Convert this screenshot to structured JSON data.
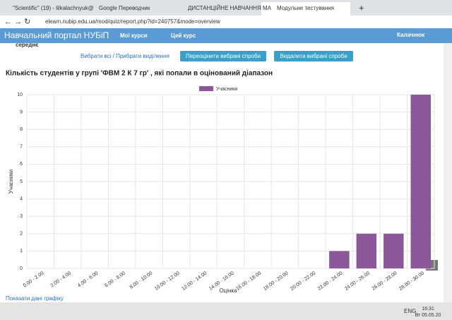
{
  "browser": {
    "tabs": [
      "\"Scientific\" (19) - lilkalachnyuk@",
      "Google Переводчик",
      "ДИСТАНЦІЙНЕ НАВЧАННЯ МА",
      "Модульне тестування"
    ],
    "url": "elearn.nubip.edu.ua/mod/quiz/report.php?id=240757&mode=overview"
  },
  "nav": {
    "title": "Навчальний портал НУБіП",
    "my_courses": "Мої курси",
    "this_course": "Цей курс",
    "user": "Калачнюк"
  },
  "page": {
    "row_label": "середнє",
    "select_links": "Вибрати всі / Прибрати виділення",
    "buttons": [
      "Переоцінити вибрані спроби",
      "Видалити вибрані спроби"
    ],
    "heading": "Кількість студентів у групі 'ФВМ 2 К 7 гр' , які попали в оцінований діапазон",
    "show_data": "Показати дані графіку"
  },
  "chart_data": {
    "type": "bar",
    "x_label": "Оцінка",
    "y_label": "Учасники",
    "categories": [
      "0.00 - 2.00",
      "2.00 - 4.00",
      "4.00 - 6.00",
      "6.00 - 8.00",
      "8.00 - 10.00",
      "10.00 - 12.00",
      "12.00 - 14.00",
      "14.00 - 16.00",
      "16.00 - 18.00",
      "18.00 - 20.00",
      "20.00 - 22.00",
      "22.00 - 24.00",
      "24.00 - 26.00",
      "26.00 - 28.00",
      "28.00 - 30.00"
    ],
    "series": [
      {
        "name": "Учасники",
        "color": "#8b5799",
        "values": [
          0,
          0,
          0,
          0,
          0,
          0,
          0,
          0,
          0,
          0,
          0,
          1,
          2,
          2,
          10
        ]
      }
    ],
    "ylim": [
      0,
      10
    ],
    "yticks": [
      0,
      1,
      2,
      3,
      4,
      5,
      6,
      7,
      8,
      9,
      10
    ],
    "grid": true
  },
  "taskbar": {
    "lang": "ENG",
    "time": "16:31",
    "date": "Вт 05.05.20"
  }
}
